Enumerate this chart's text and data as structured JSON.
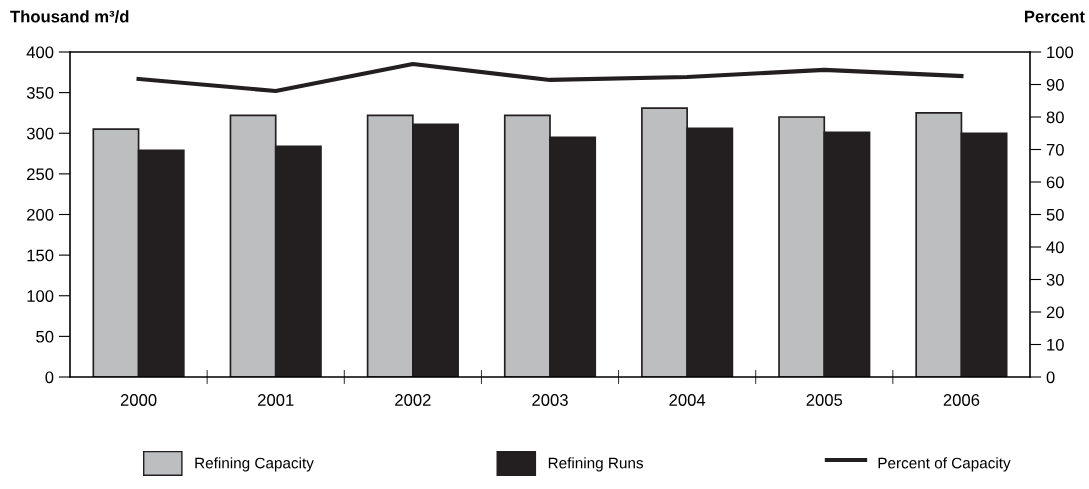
{
  "chart_data": {
    "type": "bar",
    "ylabel": "Thousand m³/d",
    "y2label": "Percent",
    "categories": [
      "2000",
      "2001",
      "2002",
      "2003",
      "2004",
      "2005",
      "2006"
    ],
    "series": [
      {
        "name": "Refining Capacity",
        "color": "#bcbec0",
        "values": [
          305,
          322,
          322,
          322,
          331,
          320,
          325
        ]
      },
      {
        "name": "Refining Runs",
        "color": "#231f20",
        "values": [
          279,
          284,
          311,
          295,
          306,
          301,
          300
        ]
      },
      {
        "name": "Percent of Capacity",
        "type": "line",
        "axis": "y2",
        "color": "#231f20",
        "values": [
          91.7,
          88,
          96.3,
          91.4,
          92.3,
          94.5,
          92.6
        ]
      }
    ],
    "ylim": [
      0,
      400
    ],
    "yticks": [
      0,
      50,
      100,
      150,
      200,
      250,
      300,
      350,
      400
    ],
    "y2lim": [
      0,
      100
    ],
    "y2ticks": [
      0,
      10,
      20,
      30,
      40,
      50,
      60,
      70,
      80,
      90,
      100
    ],
    "grid": false,
    "legend": "bottom",
    "marker": "none",
    "line_style": "solid"
  }
}
